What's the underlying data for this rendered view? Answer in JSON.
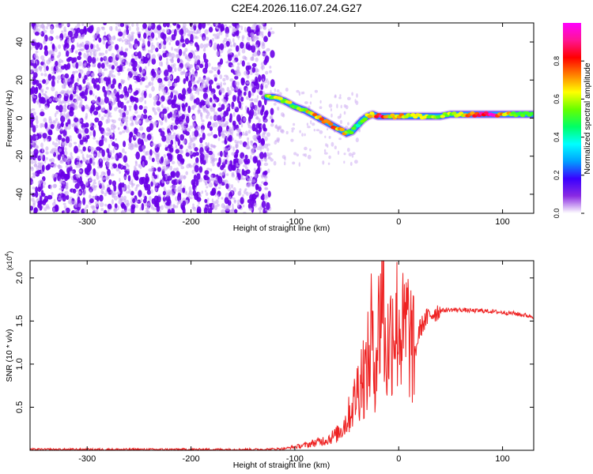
{
  "title": "C2E4.2026.116.07.24.G27",
  "colors": {
    "line": "#ee2222",
    "speckle": "#6a00e8",
    "speckle_light": "#c9a6f2",
    "axes": "#000000",
    "background": "#ffffff"
  },
  "chart_data": [
    {
      "type": "heatmap",
      "xlabel": "Height of straight line (km)",
      "ylabel": "Frequency (Hz)",
      "xlim": [
        -355,
        130
      ],
      "ylim": [
        -50,
        50
      ],
      "x_ticks": [
        -300,
        -200,
        -100,
        0,
        100
      ],
      "x_tick_labels": [
        "-300",
        "-200",
        "-100",
        "0",
        "100"
      ],
      "y_ticks": [
        -40,
        -20,
        0,
        20,
        40
      ],
      "y_tick_labels": [
        "-40",
        "-20",
        "0",
        "20",
        "40"
      ],
      "noise_region": [
        -355,
        -127
      ],
      "colorbar": {
        "label": "Normalized spectral amplitude",
        "range": [
          0,
          1
        ],
        "ticks": [
          0.0,
          0.2,
          0.4,
          0.6,
          0.8
        ],
        "tick_labels": [
          "0.0",
          "0.2",
          "0.4",
          "0.6",
          "0.8"
        ],
        "colormap": [
          "#ffffff",
          "#8a2be2",
          "#3a00ff",
          "#00a0ff",
          "#00ffff",
          "#00ff66",
          "#66ff00",
          "#ffff00",
          "#ff8000",
          "#ff0000",
          "#ff1493",
          "#ff00ff"
        ]
      },
      "ridge": {
        "x": [
          -127,
          -120,
          -110,
          -100,
          -90,
          -80,
          -70,
          -60,
          -50,
          -45,
          -40,
          -35,
          -30,
          -25,
          -20,
          -15,
          -10,
          -5,
          0,
          10,
          20,
          30,
          40,
          50,
          60,
          70,
          80,
          90,
          100,
          110,
          120,
          130
        ],
        "y": [
          11,
          11,
          9,
          6,
          4,
          1,
          -2,
          -5,
          -8,
          -7,
          -4,
          -1,
          1,
          2,
          1,
          1,
          1,
          1,
          1,
          1,
          1,
          1,
          1,
          2,
          2,
          2,
          2,
          2,
          2,
          2,
          2,
          2
        ],
        "amplitude": [
          0.55,
          0.6,
          0.6,
          0.55,
          0.6,
          0.7,
          0.75,
          0.7,
          0.65,
          0.5,
          0.45,
          0.6,
          0.6,
          0.7,
          0.85,
          0.9,
          0.65,
          0.6,
          0.75,
          0.65,
          0.55,
          0.55,
          0.55,
          0.6,
          0.6,
          0.75,
          0.9,
          0.95,
          0.7,
          0.6,
          0.55,
          0.55
        ]
      }
    },
    {
      "type": "line",
      "xlabel": "Height of straight line (km)",
      "ylabel": "SNR (10 * v/v)",
      "y_scale_note": "(x10⁴)",
      "y_scale_base": "(x10",
      "y_scale_exp": "4",
      "y_scale_end": ")",
      "xlim": [
        -355,
        130
      ],
      "ylim": [
        0,
        2.2
      ],
      "x_ticks": [
        -300,
        -200,
        -100,
        0,
        100
      ],
      "x_tick_labels": [
        "-300",
        "-200",
        "-100",
        "0",
        "100"
      ],
      "y_ticks": [
        0.5,
        1.0,
        1.5,
        2.0
      ],
      "y_tick_labels": [
        "0.5",
        "1.0",
        "1.5",
        "2.0"
      ],
      "series": [
        {
          "values_note": "SNR in units of 10^4",
          "x": [
            -355,
            -300,
            -200,
            -130,
            -110,
            -100,
            -90,
            -80,
            -70,
            -60,
            -55,
            -50,
            -45,
            -42,
            -40,
            -38,
            -35,
            -32,
            -30,
            -28,
            -26,
            -25,
            -24,
            -22,
            -20,
            -18,
            -17,
            -16,
            -15,
            -14,
            -12,
            -10,
            -8,
            -5,
            -3,
            0,
            3,
            5,
            8,
            10,
            12,
            15,
            18,
            20,
            25,
            30,
            35,
            40,
            50,
            60,
            70,
            80,
            90,
            100,
            110,
            120,
            130
          ],
          "y": [
            0.01,
            0.01,
            0.01,
            0.01,
            0.02,
            0.04,
            0.06,
            0.09,
            0.12,
            0.18,
            0.25,
            0.35,
            0.5,
            0.6,
            0.7,
            0.8,
            0.9,
            0.85,
            1.0,
            1.05,
            1.55,
            1.1,
            0.9,
            1.2,
            1.3,
            1.6,
            1.75,
            2.18,
            1.9,
            1.4,
            1.0,
            1.25,
            1.3,
            1.6,
            1.45,
            1.5,
            1.35,
            1.3,
            1.45,
            1.35,
            1.25,
            1.1,
            1.25,
            1.4,
            1.5,
            1.57,
            1.6,
            1.62,
            1.63,
            1.63,
            1.62,
            1.62,
            1.61,
            1.6,
            1.59,
            1.57,
            1.55
          ]
        }
      ]
    }
  ]
}
